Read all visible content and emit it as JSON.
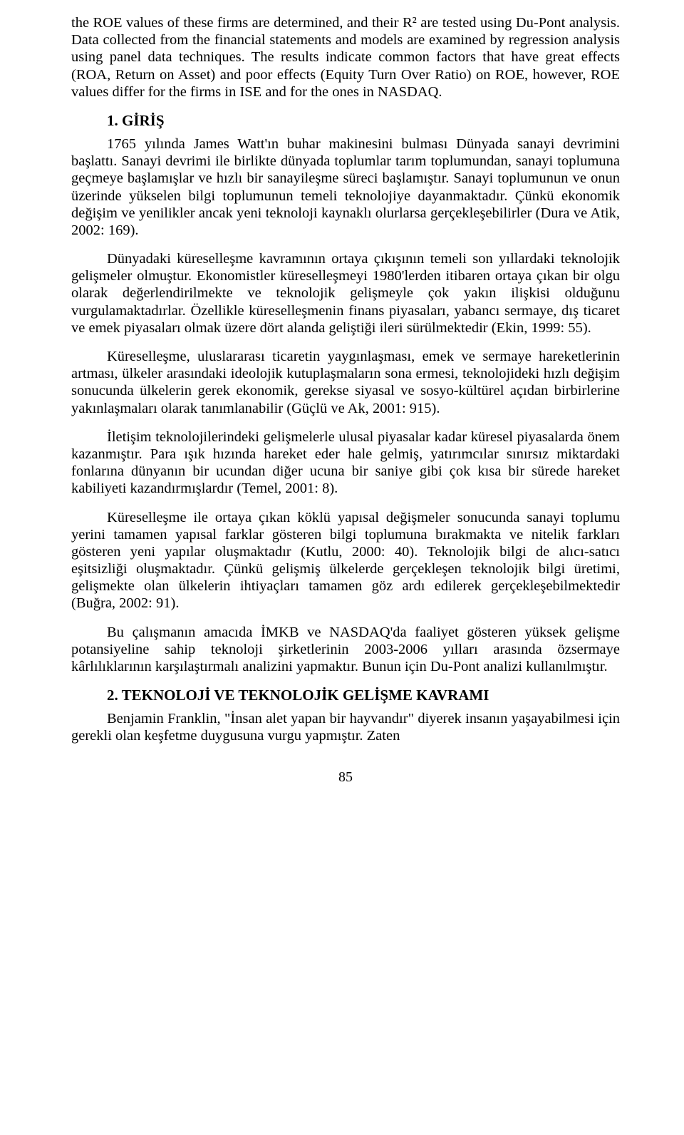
{
  "abstract": {
    "text": "the ROE values of these firms are determined, and their R² are tested using Du-Pont analysis. Data collected from the financial statements and models are examined by regression analysis using panel data techniques. The results indicate common factors that have great effects (ROA, Return on Asset) and poor effects (Equity Turn Over Ratio) on ROE, however, ROE values differ for the firms in ISE and for the ones in NASDAQ."
  },
  "section1": {
    "heading": "1. GİRİŞ",
    "p1": "1765 yılında James Watt'ın buhar makinesini bulması Dünyada sanayi devrimini başlattı. Sanayi devrimi ile birlikte dünyada toplumlar tarım toplumundan, sanayi toplumuna geçmeye başlamışlar ve hızlı bir sanayileşme süreci başlamıştır. Sanayi toplumunun ve onun üzerinde yükselen bilgi toplumunun temeli teknolojiye dayanmaktadır. Çünkü ekonomik değişim ve yenilikler ancak yeni teknoloji kaynaklı olurlarsa gerçekleşebilirler (Dura ve Atik, 2002: 169).",
    "p2": "Dünyadaki küreselleşme kavramının ortaya çıkışının temeli son yıllardaki teknolojik gelişmeler olmuştur. Ekonomistler küreselleşmeyi 1980'lerden itibaren ortaya çıkan bir olgu olarak değerlendirilmekte ve teknolojik gelişmeyle çok yakın ilişkisi olduğunu vurgulamaktadırlar. Özellikle küreselleşmenin finans piyasaları, yabancı sermaye, dış ticaret ve emek piyasaları olmak üzere dört alanda geliştiği ileri sürülmektedir (Ekin, 1999: 55).",
    "p3": "Küreselleşme, uluslararası ticaretin yaygınlaşması, emek ve sermaye hareketlerinin artması, ülkeler arasındaki ideolojik kutuplaşmaların sona ermesi, teknolojideki hızlı değişim sonucunda ülkelerin gerek ekonomik, gerekse siyasal ve sosyo-kültürel açıdan birbirlerine yakınlaşmaları olarak tanımlanabilir (Güçlü ve Ak, 2001: 915).",
    "p4": "İletişim teknolojilerindeki gelişmelerle ulusal piyasalar kadar küresel piyasalarda önem kazanmıştır. Para ışık hızında hareket eder hale gelmiş, yatırımcılar sınırsız miktardaki fonlarına dünyanın bir ucundan diğer ucuna bir saniye gibi çok kısa bir sürede hareket kabiliyeti kazandırmışlardır (Temel, 2001: 8).",
    "p5": "Küreselleşme ile ortaya çıkan köklü yapısal değişmeler sonucunda sanayi toplumu yerini tamamen yapısal farklar gösteren bilgi toplumuna bırakmakta ve nitelik farkları gösteren yeni yapılar oluşmaktadır (Kutlu, 2000: 40). Teknolojik bilgi de alıcı-satıcı eşitsizliği oluşmaktadır. Çünkü gelişmiş ülkelerde gerçekleşen teknolojik bilgi üretimi, gelişmekte olan ülkelerin ihtiyaçları tamamen göz ardı edilerek gerçekleşebilmektedir (Buğra, 2002: 91).",
    "p6": "Bu çalışmanın amacıda İMKB ve NASDAQ'da faaliyet gösteren yüksek gelişme potansiyeline sahip teknoloji şirketlerinin 2003-2006 yılları arasında özsermaye kârlılıklarının karşılaştırmalı analizini yapmaktır. Bunun için Du-Pont analizi kullanılmıştır."
  },
  "section2": {
    "heading": "2. TEKNOLOJİ VE TEKNOLOJİK GELİŞME KAVRAMI",
    "p1": "Benjamin Franklin, \"İnsan alet yapan bir hayvandır\" diyerek insanın yaşayabilmesi için gerekli olan keşfetme duygusuna vurgu yapmıştır. Zaten"
  },
  "pageNumber": "85"
}
